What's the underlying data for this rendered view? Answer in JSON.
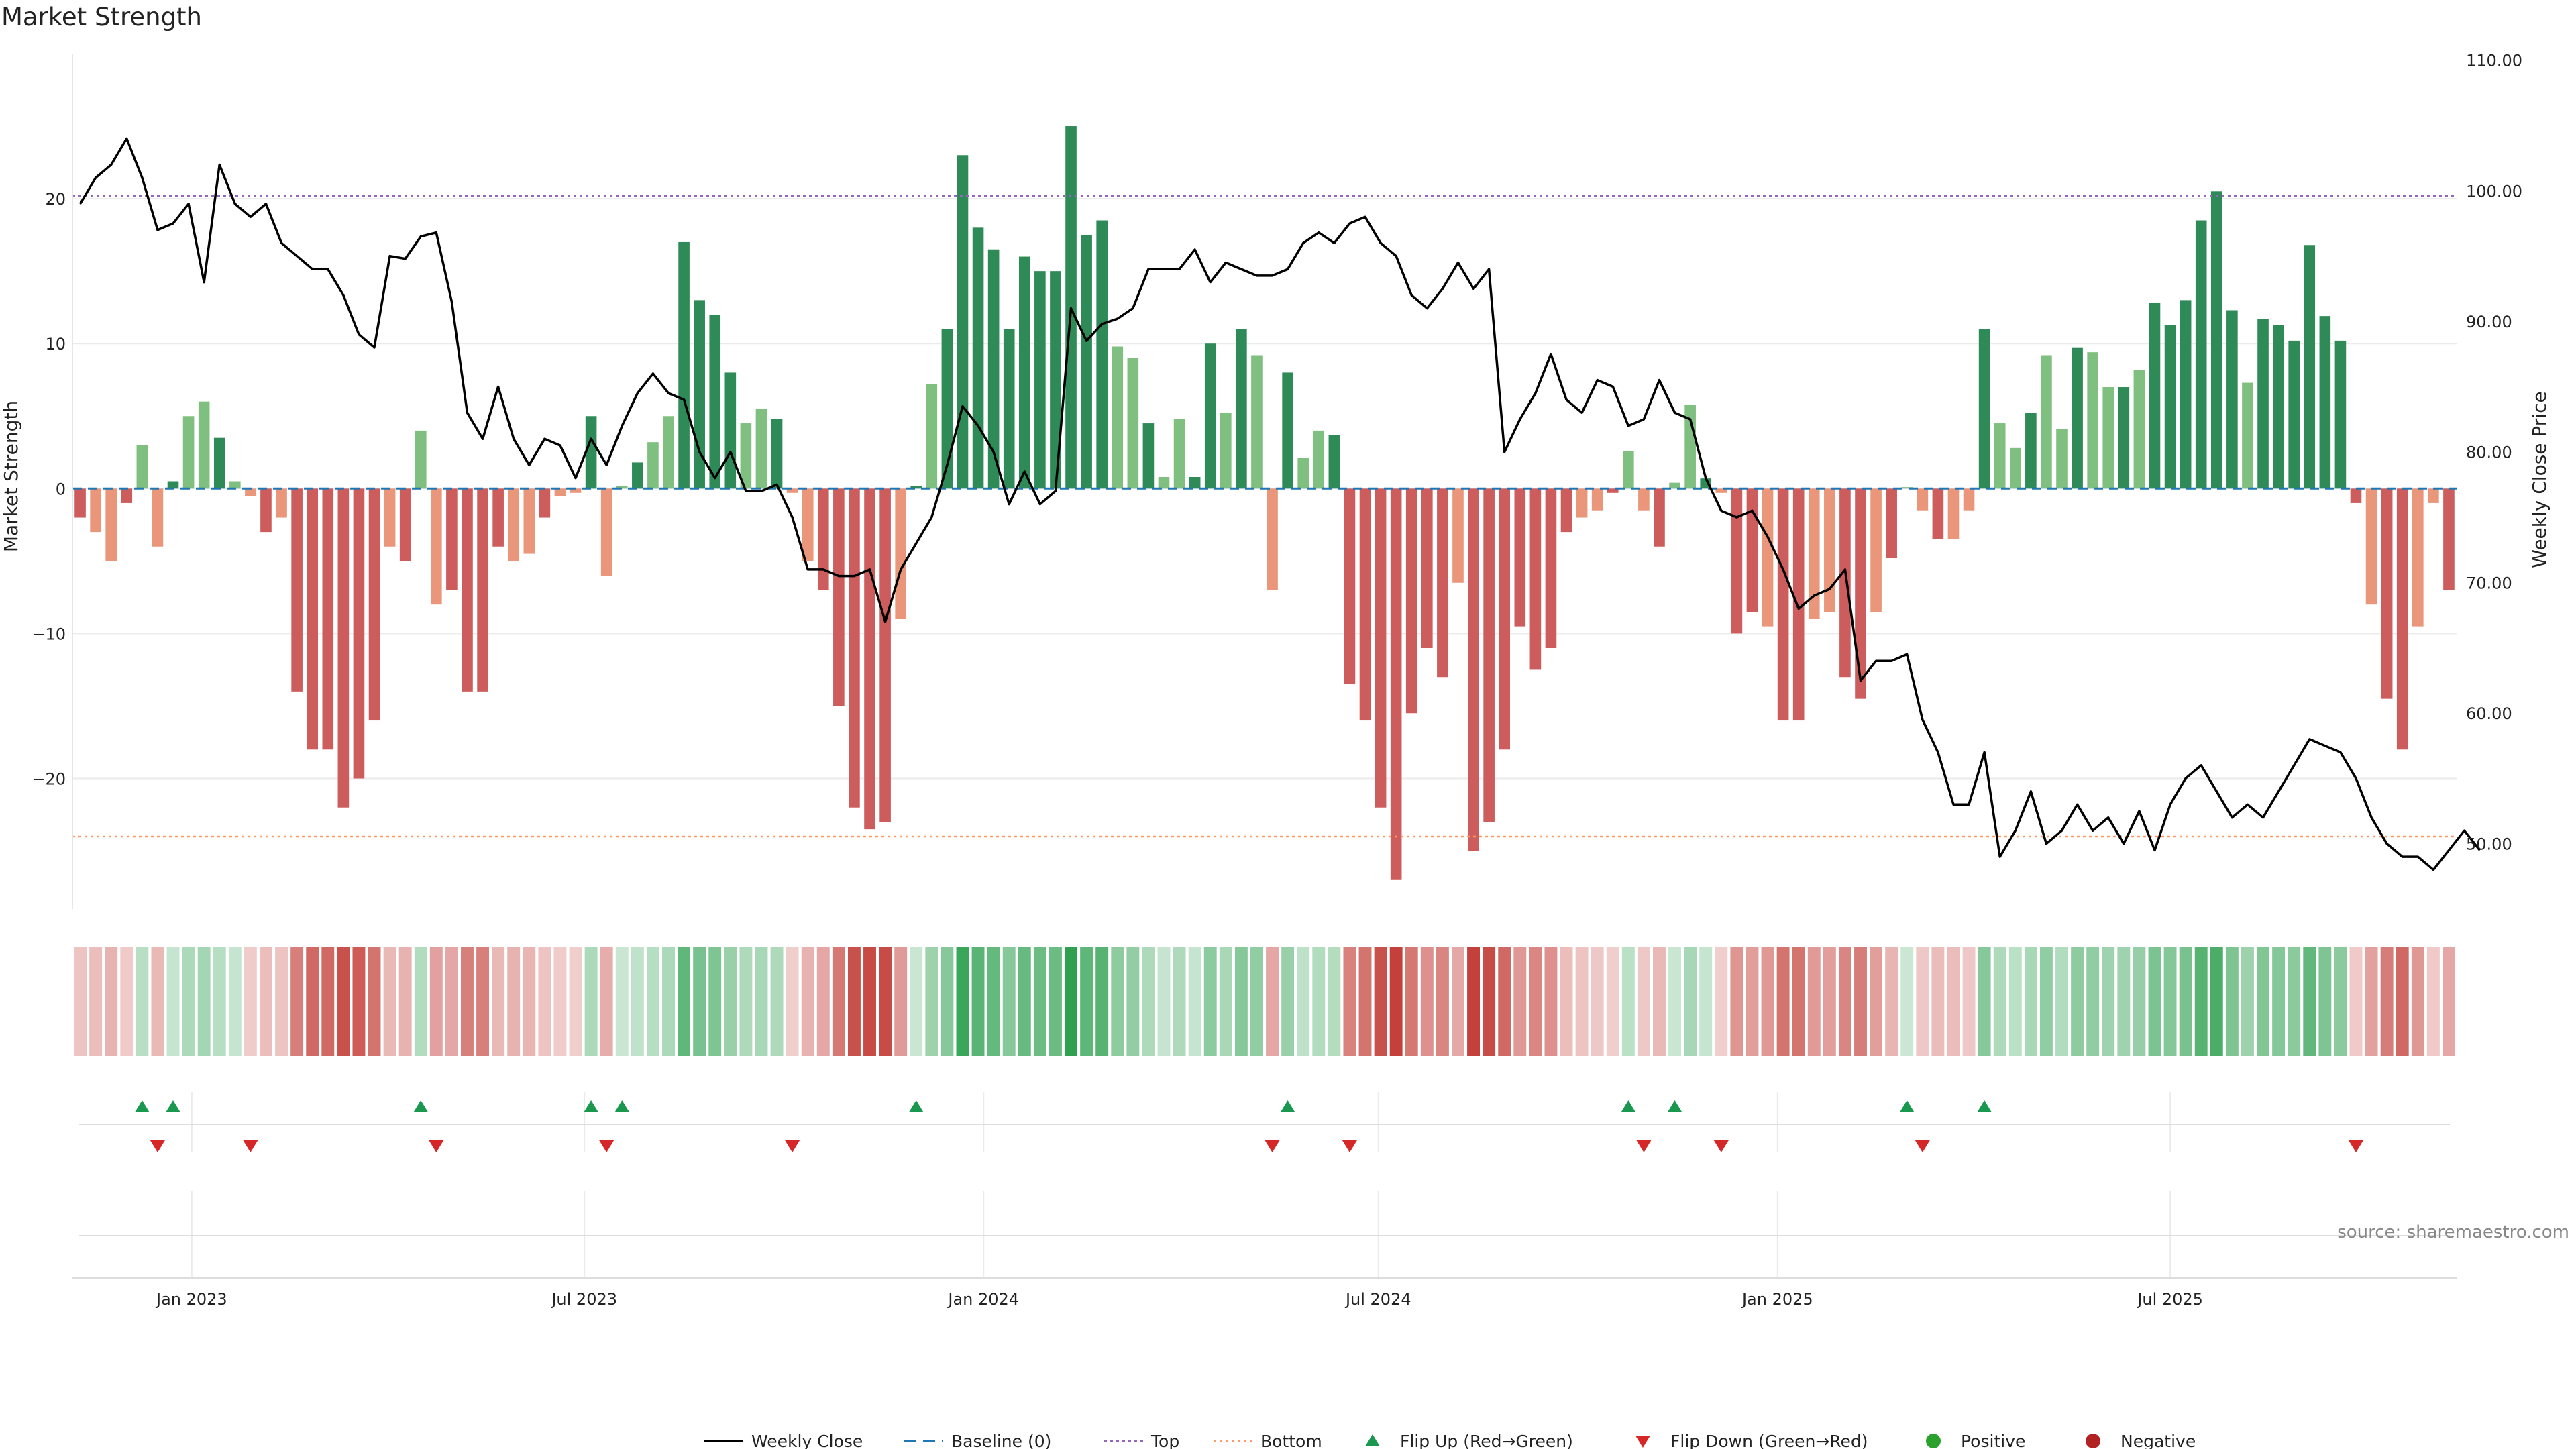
{
  "chart_data": {
    "type": "bar",
    "title": "Market Strength",
    "ylabel_left": "Market Strength",
    "ylabel_right": "Weekly Close Price",
    "ylim_left": [
      -29,
      30
    ],
    "ylim_right": [
      45,
      110.5
    ],
    "yticks_left": [
      20,
      10,
      0,
      -10,
      -20
    ],
    "yticks_right": [
      "110.00",
      "100.00",
      "90.00",
      "80.00",
      "70.00",
      "60.00",
      "50.00"
    ],
    "x_start": "2022-11-07",
    "x_end": "2025-11-10",
    "xticks": [
      {
        "label": "Jan 2023",
        "date": "2023-01-01"
      },
      {
        "label": "Jul 2023",
        "date": "2023-07-01"
      },
      {
        "label": "Jan 2024",
        "date": "2024-01-01"
      },
      {
        "label": "Jul 2024",
        "date": "2024-07-01"
      },
      {
        "label": "Jan 2025",
        "date": "2025-01-01"
      },
      {
        "label": "Jul 2025",
        "date": "2025-07-01"
      }
    ],
    "top_level": 20.2,
    "bottom_level": -24,
    "strength": [
      -2,
      -3,
      -5,
      -1,
      3,
      -4,
      0.5,
      5,
      6,
      3.5,
      0.5,
      -0.5,
      -3,
      -2,
      -14,
      -18,
      -18,
      -22,
      -20,
      -16,
      -4,
      -5,
      4,
      -8,
      -7,
      -14,
      -14,
      -4,
      -5,
      -4.5,
      -2,
      -0.5,
      -0.3,
      5,
      -6,
      0.2,
      1.8,
      3.2,
      5,
      17,
      13,
      12,
      8,
      4.5,
      5.5,
      4.8,
      -0.3,
      -5,
      -7,
      -15,
      -22,
      -23.5,
      -23,
      -9,
      0.2,
      7.2,
      11,
      23,
      18,
      16.5,
      11,
      16,
      15,
      15,
      25,
      17.5,
      18.5,
      9.8,
      9,
      4.5,
      0.8,
      4.8,
      0.8,
      10,
      5.2,
      11,
      9.2,
      -7,
      8,
      2.1,
      4,
      3.7,
      -13.5,
      -16,
      -22,
      -27,
      -15.5,
      -11,
      -13,
      -6.5,
      -25,
      -23,
      -18,
      -9.5,
      -12.5,
      -11,
      -3,
      -2,
      -1.5,
      -0.3,
      2.6,
      -1.5,
      -4,
      0.4,
      5.8,
      0.7,
      -0.3,
      -10,
      -8.5,
      -9.5,
      -16,
      -16,
      -9,
      -8.5,
      -13,
      -14.5,
      -8.5,
      -4.8,
      0.1,
      -1.5,
      -3.5,
      -3.5,
      -1.5,
      11,
      4.5,
      2.8,
      5.2,
      9.2,
      4.1,
      9.7,
      9.4,
      7,
      7,
      8.2,
      12.8,
      11.3,
      13,
      18.5,
      20.5,
      12.3,
      7.3,
      11.7,
      11.3,
      10.2,
      16.8,
      11.9,
      10.2,
      -1,
      -8,
      -14.5,
      -18,
      -9.5,
      -1,
      -7
    ],
    "close": [
      99,
      101,
      102,
      104,
      101,
      97,
      97.5,
      99,
      93,
      102,
      99,
      98,
      99,
      96,
      95,
      94,
      94,
      92,
      89,
      88,
      95,
      94.8,
      96.5,
      96.8,
      91.5,
      83,
      81,
      85,
      81,
      79,
      81,
      80.5,
      78,
      81,
      79,
      82,
      84.5,
      86,
      84.5,
      84,
      80,
      78,
      80,
      77,
      77,
      77.5,
      75,
      71,
      71,
      70.5,
      70.5,
      71,
      67,
      71,
      73,
      75,
      79,
      83.5,
      82,
      80,
      76,
      78.5,
      76,
      77,
      91,
      88.5,
      89.8,
      90.2,
      91,
      94,
      94,
      94,
      95.5,
      93,
      94.5,
      94,
      93.5,
      93.5,
      94,
      96,
      96.8,
      96,
      97.5,
      98,
      96,
      95,
      92,
      91,
      92.5,
      94.5,
      92.5,
      94,
      80,
      82.5,
      84.5,
      87.5,
      84,
      83,
      85.5,
      85,
      82,
      82.5,
      85.5,
      83,
      82.5,
      78,
      75.5,
      75,
      75.5,
      73.5,
      71,
      68,
      69,
      69.5,
      71,
      62.5,
      64,
      64,
      64.5,
      59.5,
      57,
      53,
      53,
      57,
      49,
      51,
      54,
      50,
      51,
      53,
      51,
      52,
      50,
      52.5,
      49.5,
      53,
      55,
      56,
      54,
      52,
      53,
      52,
      54,
      56,
      58,
      57.5,
      57,
      55,
      52,
      50,
      49,
      49,
      48,
      49.5,
      51,
      49.5
    ]
  },
  "legend": [
    {
      "label": "Weekly Close",
      "symbol": "line",
      "color": "#000000"
    },
    {
      "label": "Baseline (0)",
      "symbol": "dash",
      "color": "#1f77b4"
    },
    {
      "label": "Top",
      "symbol": "dot",
      "color": "#9467bd"
    },
    {
      "label": "Bottom",
      "symbol": "dot",
      "color": "#ff9966"
    },
    {
      "label": "Flip Up (Red→Green)",
      "symbol": "up",
      "color": "#1a9850"
    },
    {
      "label": "Flip Down (Green→Red)",
      "symbol": "down",
      "color": "#d62728"
    },
    {
      "label": "Positive",
      "symbol": "dot-circle",
      "color": "#2ca02c"
    },
    {
      "label": "Negative",
      "symbol": "dot-circle",
      "color": "#b22222"
    }
  ],
  "source": "source: sharemaestro.com",
  "colors": {
    "pos_strong": "#2e8b57",
    "pos_light": "#7fbf7f",
    "neg_strong": "#cd5c5c",
    "neg_light": "#e9967a",
    "baseline": "#1f77b4",
    "top": "#9467bd",
    "bottom": "#ff9966",
    "close": "#000000"
  }
}
